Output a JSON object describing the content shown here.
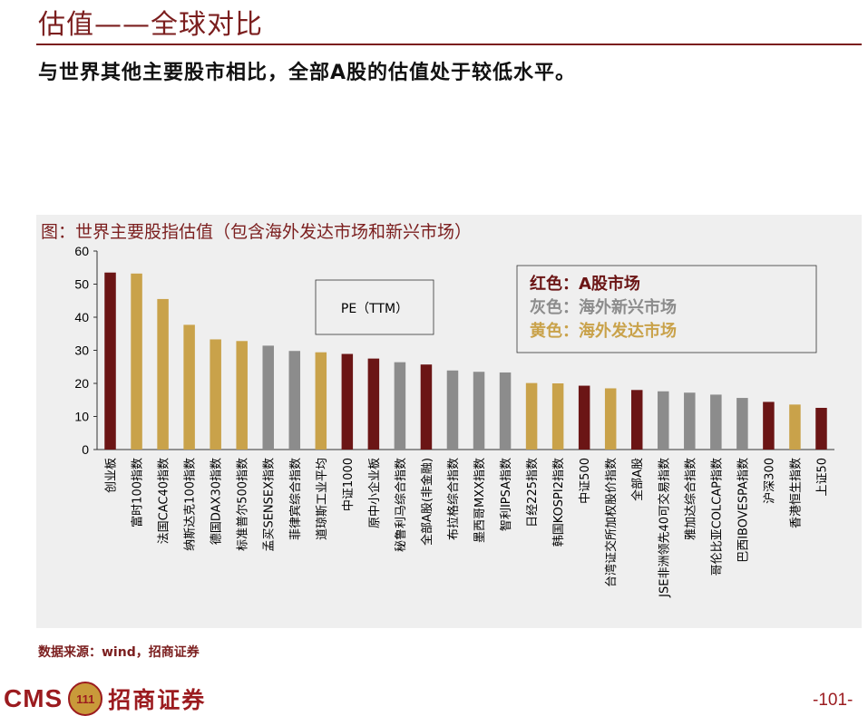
{
  "header": {
    "title": "估值——全球对比",
    "subtitle": "与世界其他主要股市相比，全部A股的估值处于较低水平。"
  },
  "colors": {
    "red": "#6b1515",
    "gray": "#8c8c8c",
    "gold": "#c9a24a",
    "brand": "#7b1e1e"
  },
  "chart_data": {
    "type": "bar",
    "title": "图：世界主要股指估值（包含海外发达市场和新兴市场）",
    "series_label": "PE（TTM）",
    "legend": [
      {
        "label": "红色：A股市场",
        "color": "red"
      },
      {
        "label": "灰色：海外新兴市场",
        "color": "gray"
      },
      {
        "label": "黄色：海外发达市场",
        "color": "gold"
      }
    ],
    "ylim": [
      0,
      60
    ],
    "yticks": [
      0,
      10,
      20,
      30,
      40,
      50,
      60
    ],
    "categories": [
      "创业板",
      "富时100指数",
      "法国CAC40指数",
      "纳斯达克100指数",
      "德国DAX30指数",
      "标准普尔500指数",
      "孟买SENSEX指数",
      "菲律宾综合指数",
      "道琼斯工业平均",
      "中证1000",
      "原中小企业板",
      "秘鲁利马综合指数",
      "全部A股(非金融)",
      "布拉格综合指数",
      "墨西哥MXX指数",
      "智利IPSA指数",
      "日经225指数",
      "韩国KOSPI2指数",
      "中证500",
      "台湾证交所加权股价指数",
      "全部A股",
      "JSE非洲领先40可交易指数",
      "雅加达综合指数",
      "哥伦比亚COLCAP指数",
      "巴西IBOVESPA指数",
      "沪深300",
      "香港恒生指数",
      "上证50"
    ],
    "values": [
      53.5,
      53.2,
      45.5,
      37.7,
      33.3,
      32.8,
      31.4,
      29.8,
      29.4,
      28.9,
      27.5,
      26.4,
      25.7,
      23.9,
      23.5,
      23.3,
      20.1,
      20.0,
      19.3,
      18.5,
      18.0,
      17.6,
      17.2,
      16.6,
      15.6,
      14.4,
      13.6,
      12.6
    ],
    "bar_colors": [
      "red",
      "gold",
      "gold",
      "gold",
      "gold",
      "gold",
      "gray",
      "gray",
      "gold",
      "red",
      "red",
      "gray",
      "red",
      "gray",
      "gray",
      "gray",
      "gold",
      "gold",
      "red",
      "gold",
      "red",
      "gray",
      "gray",
      "gray",
      "gray",
      "red",
      "gold",
      "red"
    ]
  },
  "footer": {
    "source": "数据来源：wind，招商证券",
    "logo_latin": "CMS",
    "logo_badge": "111",
    "logo_cn": "招商证券",
    "page_number": "-101-"
  }
}
